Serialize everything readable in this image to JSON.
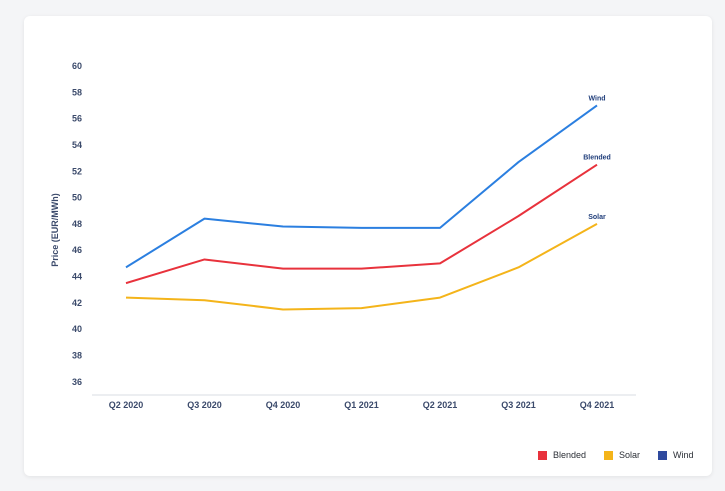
{
  "chart_data": {
    "type": "line",
    "ylabel": "Price (EUR/MWh)",
    "xlabel": "",
    "categories": [
      "Q2 2020",
      "Q3 2020",
      "Q4 2020",
      "Q1 2021",
      "Q2 2021",
      "Q3 2021",
      "Q4 2021"
    ],
    "ylim": [
      35,
      60
    ],
    "yticks": [
      36,
      38,
      40,
      42,
      44,
      46,
      48,
      50,
      52,
      54,
      56,
      58,
      60
    ],
    "grid": false,
    "legend_position": "bottom-right",
    "series": [
      {
        "name": "Wind",
        "color": "#2b7fe0",
        "legend_color": "#2f4a9e",
        "values": [
          44.7,
          48.4,
          47.8,
          47.7,
          47.7,
          52.7,
          57.0
        ]
      },
      {
        "name": "Blended",
        "color": "#e8323c",
        "legend_color": "#e8323c",
        "values": [
          43.5,
          45.3,
          44.6,
          44.6,
          45.0,
          48.6,
          52.5
        ]
      },
      {
        "name": "Solar",
        "color": "#f4b41a",
        "legend_color": "#f4b41a",
        "values": [
          42.4,
          42.2,
          41.5,
          41.6,
          42.4,
          44.7,
          48.0
        ]
      }
    ],
    "legend": [
      "Blended",
      "Solar",
      "Wind"
    ]
  }
}
